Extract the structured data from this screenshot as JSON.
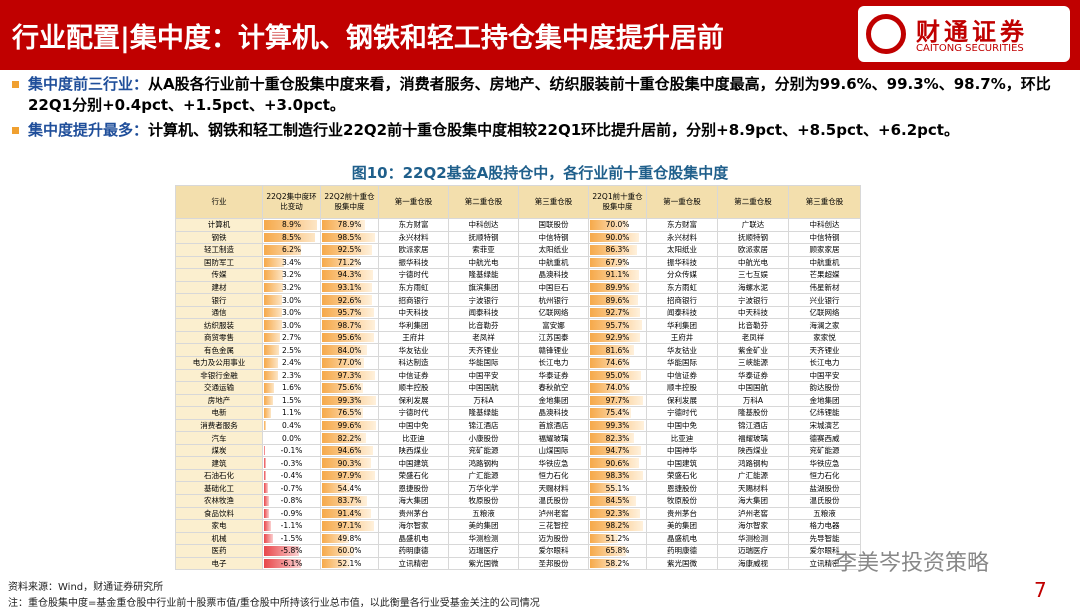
{
  "header": {
    "title": "行业配置|集中度：计算机、钢铁和轻工持仓集中度提升居前",
    "logo_cn": "财通证券",
    "logo_en": "CAITONG SECURITIES"
  },
  "bullets": [
    {
      "label": "集中度前三行业：",
      "text": "从A股各行业前十重仓股集中度来看，消费者服务、房地产、纺织服装前十重仓股集中度最高，分别为99.6%、99.3%、98.7%，环比22Q1分别+0.4pct、+1.5pct、+3.0pct。"
    },
    {
      "label": "集中度提升最多：",
      "text": "计算机、钢铁和轻工制造行业22Q2前十重仓股集中度相较22Q1环比提升居前，分别+8.9pct、+8.5pct、+6.2pct。"
    }
  ],
  "table": {
    "title": "图10：22Q2基金A股持仓中，各行业前十重仓股集中度",
    "columns": [
      "行业",
      "22Q2集中度环比变动",
      "22Q2前十重仓股集中度",
      "第一重仓股",
      "第二重仓股",
      "第三重仓股",
      "22Q1前十重仓股集中度",
      "第一重仓股",
      "第二重仓股",
      "第三重仓股"
    ],
    "rows": [
      [
        "计算机",
        "8.9%",
        "78.9%",
        "东方财富",
        "中科创达",
        "国联股份",
        "70.0%",
        "东方财富",
        "广联达",
        "中科创达"
      ],
      [
        "钢铁",
        "8.5%",
        "98.5%",
        "永兴材料",
        "抚顺特钢",
        "中信特钢",
        "90.0%",
        "永兴材料",
        "抚顺特钢",
        "中信特钢"
      ],
      [
        "轻工制造",
        "6.2%",
        "92.5%",
        "欧派家居",
        "索菲亚",
        "太阳纸业",
        "86.3%",
        "太阳纸业",
        "欧派家居",
        "顾家家居"
      ],
      [
        "国防军工",
        "3.4%",
        "71.2%",
        "振华科技",
        "中航光电",
        "中航重机",
        "67.9%",
        "振华科技",
        "中航光电",
        "中航重机"
      ],
      [
        "传媒",
        "3.2%",
        "94.3%",
        "宁德时代",
        "隆基绿能",
        "晶澳科技",
        "91.1%",
        "分众传媒",
        "三七互娱",
        "芒果超媒"
      ],
      [
        "建材",
        "3.2%",
        "93.1%",
        "东方雨虹",
        "旗滨集团",
        "中国巨石",
        "89.9%",
        "东方雨虹",
        "海螺水泥",
        "伟星新材"
      ],
      [
        "银行",
        "3.0%",
        "92.6%",
        "招商银行",
        "宁波银行",
        "杭州银行",
        "89.6%",
        "招商银行",
        "宁波银行",
        "兴业银行"
      ],
      [
        "通信",
        "3.0%",
        "95.7%",
        "中天科技",
        "闻泰科技",
        "亿联网络",
        "92.7%",
        "闻泰科技",
        "中天科技",
        "亿联网络"
      ],
      [
        "纺织服装",
        "3.0%",
        "98.7%",
        "华利集团",
        "比音勒芬",
        "富安娜",
        "95.7%",
        "华利集团",
        "比音勒芬",
        "海澜之家"
      ],
      [
        "商贸零售",
        "2.7%",
        "95.6%",
        "王府井",
        "老凤祥",
        "江苏国泰",
        "92.9%",
        "王府井",
        "老凤祥",
        "家家悦"
      ],
      [
        "有色金属",
        "2.5%",
        "84.0%",
        "华友钴业",
        "天齐锂业",
        "赣锋锂业",
        "81.6%",
        "华友钴业",
        "紫金矿业",
        "天齐锂业"
      ],
      [
        "电力及公用事业",
        "2.4%",
        "77.0%",
        "科达制造",
        "华能国际",
        "长江电力",
        "74.6%",
        "华能国际",
        "三峡能源",
        "长江电力"
      ],
      [
        "非银行金融",
        "2.3%",
        "97.3%",
        "中信证券",
        "中国平安",
        "华泰证券",
        "95.0%",
        "中信证券",
        "华泰证券",
        "中国平安"
      ],
      [
        "交通运输",
        "1.6%",
        "75.6%",
        "顺丰控股",
        "中国国航",
        "春秋航空",
        "74.0%",
        "顺丰控股",
        "中国国航",
        "韵达股份"
      ],
      [
        "房地产",
        "1.5%",
        "99.3%",
        "保利发展",
        "万科A",
        "金地集团",
        "97.7%",
        "保利发展",
        "万科A",
        "金地集团"
      ],
      [
        "电新",
        "1.1%",
        "76.5%",
        "宁德时代",
        "隆基绿能",
        "晶澳科技",
        "75.4%",
        "宁德时代",
        "隆基股份",
        "亿纬锂能"
      ],
      [
        "消费者服务",
        "0.4%",
        "99.6%",
        "中国中免",
        "锦江酒店",
        "首旅酒店",
        "99.3%",
        "中国中免",
        "锦江酒店",
        "宋城演艺"
      ],
      [
        "汽车",
        "0.0%",
        "82.2%",
        "比亚迪",
        "小康股份",
        "福耀玻璃",
        "82.3%",
        "比亚迪",
        "福耀玻璃",
        "德赛西威"
      ],
      [
        "煤炭",
        "-0.1%",
        "94.6%",
        "陕西煤业",
        "兖矿能源",
        "山煤国际",
        "94.7%",
        "中国神华",
        "陕西煤业",
        "兖矿能源"
      ],
      [
        "建筑",
        "-0.3%",
        "90.3%",
        "中国建筑",
        "鸿路钢构",
        "华铁应急",
        "90.6%",
        "中国建筑",
        "鸿路钢构",
        "华铁应急"
      ],
      [
        "石油石化",
        "-0.4%",
        "97.9%",
        "荣盛石化",
        "广汇能源",
        "恒力石化",
        "98.3%",
        "荣盛石化",
        "广汇能源",
        "恒力石化"
      ],
      [
        "基础化工",
        "-0.7%",
        "54.4%",
        "恩捷股份",
        "万华化学",
        "天赐材料",
        "55.1%",
        "恩捷股份",
        "天赐材料",
        "盐湖股份"
      ],
      [
        "农林牧渔",
        "-0.8%",
        "83.7%",
        "海大集团",
        "牧原股份",
        "温氏股份",
        "84.5%",
        "牧原股份",
        "海大集团",
        "温氏股份"
      ],
      [
        "食品饮料",
        "-0.9%",
        "91.4%",
        "贵州茅台",
        "五粮液",
        "泸州老窖",
        "92.3%",
        "贵州茅台",
        "泸州老窖",
        "五粮液"
      ],
      [
        "家电",
        "-1.1%",
        "97.1%",
        "海尔智家",
        "美的集团",
        "三花智控",
        "98.2%",
        "美的集团",
        "海尔智家",
        "格力电器"
      ],
      [
        "机械",
        "-1.5%",
        "49.8%",
        "晶盛机电",
        "华测检测",
        "迈为股份",
        "51.2%",
        "晶盛机电",
        "华测检测",
        "先导智能"
      ],
      [
        "医药",
        "-5.8%",
        "60.0%",
        "药明康德",
        "迈瑞医疗",
        "爱尔眼科",
        "65.8%",
        "药明康德",
        "迈瑞医疗",
        "爱尔眼科"
      ],
      [
        "电子",
        "-6.1%",
        "52.1%",
        "立讯精密",
        "紫光国微",
        "圣邦股份",
        "58.2%",
        "紫光国微",
        "海康威视",
        "立讯精密"
      ]
    ]
  },
  "notes": [
    "资料来源：Wind，财通证券研究所",
    "注：重仓股集中度=基金重仓股中行业前十股票市值/重仓股中所持该行业总市值，以此衡量各行业受基金关注的公司情况"
  ],
  "watermark": "李美岑投资策略",
  "page_number": "7"
}
